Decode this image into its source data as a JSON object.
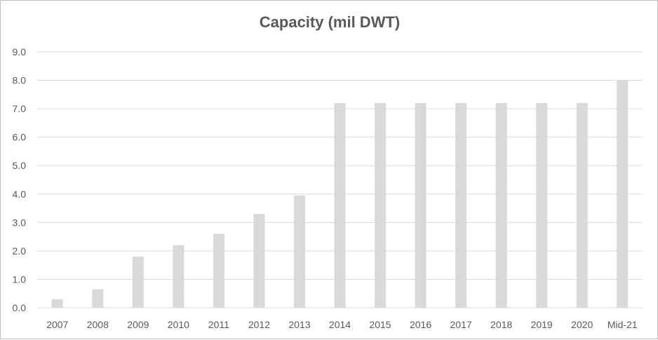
{
  "chart_data": {
    "type": "bar",
    "title": "Capacity (mil DWT)",
    "xlabel": "",
    "ylabel": "",
    "categories": [
      "2007",
      "2008",
      "2009",
      "2010",
      "2011",
      "2012",
      "2013",
      "2014",
      "2015",
      "2016",
      "2017",
      "2018",
      "2019",
      "2020",
      "Mid-21"
    ],
    "values": [
      0.3,
      0.65,
      1.8,
      2.2,
      2.6,
      3.3,
      3.95,
      7.2,
      7.2,
      7.2,
      7.2,
      7.2,
      7.2,
      7.2,
      8.0
    ],
    "ylim": [
      0,
      9
    ],
    "yticks": [
      "0.0",
      "1.0",
      "2.0",
      "3.0",
      "4.0",
      "5.0",
      "6.0",
      "7.0",
      "8.0",
      "9.0"
    ],
    "grid": true,
    "legend": "none",
    "bar_color": "#d9d9d9",
    "grid_color": "#d9d9d9"
  }
}
